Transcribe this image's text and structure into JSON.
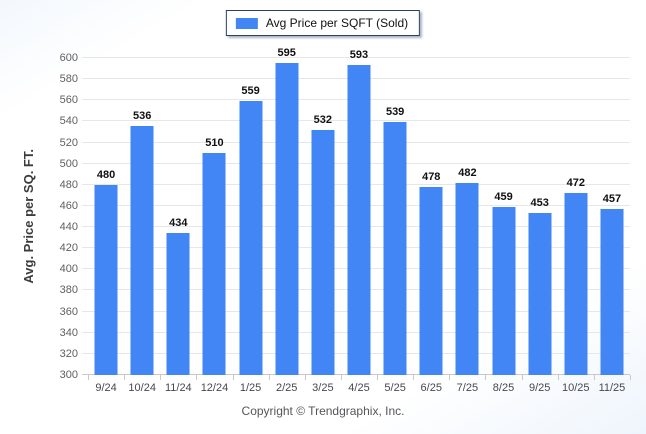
{
  "legend": {
    "label": "Avg Price per SQFT (Sold)",
    "swatch_color": "#4285F4"
  },
  "chart_data": {
    "type": "bar",
    "title": "",
    "xlabel": "",
    "ylabel": "Avg. Price per SQ. FT.",
    "categories": [
      "9/24",
      "10/24",
      "11/24",
      "12/24",
      "1/25",
      "2/25",
      "3/25",
      "4/25",
      "5/25",
      "6/25",
      "7/25",
      "8/25",
      "9/25",
      "10/25",
      "11/25"
    ],
    "values": [
      480,
      536,
      434,
      510,
      559,
      595,
      532,
      593,
      539,
      478,
      482,
      459,
      453,
      472,
      457
    ],
    "series_name": "Avg Price per SQFT (Sold)",
    "ylim": [
      300,
      600
    ],
    "ytick_step": 20,
    "yticks": [
      300,
      320,
      340,
      360,
      380,
      400,
      420,
      440,
      460,
      480,
      500,
      520,
      540,
      560,
      580,
      600
    ],
    "grid": true,
    "legend_position": "top-center",
    "bar_color": "#4285F4",
    "value_labels": true
  },
  "colors": {
    "bar": "#4285F4",
    "gridline": "#e7e7e7",
    "axis_line": "#c9c9c9"
  },
  "footer": {
    "copyright": "Copyright © Trendgraphix, Inc."
  }
}
